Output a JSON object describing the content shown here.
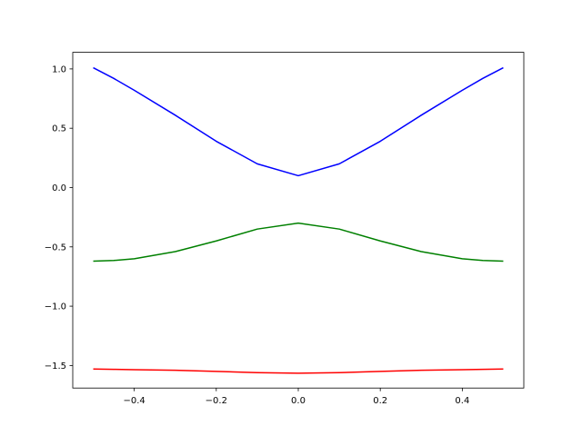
{
  "chart_data": {
    "type": "line",
    "x": [
      -0.5,
      -0.45,
      -0.4,
      -0.3,
      -0.2,
      -0.1,
      0,
      0.1,
      0.2,
      0.3,
      0.4,
      0.45,
      0.5
    ],
    "series": [
      {
        "color": "#0000ff",
        "values": [
          1.01,
          0.92,
          0.82,
          0.61,
          0.39,
          0.2,
          0.1,
          0.2,
          0.39,
          0.61,
          0.82,
          0.92,
          1.01
        ]
      },
      {
        "color": "#008000",
        "values": [
          -0.62,
          -0.615,
          -0.6,
          -0.54,
          -0.45,
          -0.35,
          -0.3,
          -0.35,
          -0.45,
          -0.54,
          -0.6,
          -0.615,
          -0.62
        ]
      },
      {
        "color": "#ff0000",
        "values": [
          -1.53,
          -1.532,
          -1.535,
          -1.54,
          -1.55,
          -1.56,
          -1.565,
          -1.56,
          -1.55,
          -1.54,
          -1.535,
          -1.532,
          -1.53
        ]
      }
    ],
    "xlim": [
      -0.55,
      0.55
    ],
    "ylim": [
      -1.69,
      1.14
    ],
    "xticks": [
      {
        "value": -0.4,
        "label": "−0.4"
      },
      {
        "value": -0.2,
        "label": "−0.2"
      },
      {
        "value": 0,
        "label": "0.0"
      },
      0.2,
      0.4
    ],
    "yticks": [
      {
        "value": -1.5,
        "label": "−1.5"
      },
      {
        "value": -1.0,
        "label": "−1.0"
      },
      {
        "value": -0.5,
        "label": "−0.5"
      },
      {
        "value": 0,
        "label": "0.0"
      },
      0.5,
      {
        "value": 1.0,
        "label": "1.0"
      }
    ],
    "grid": false
  }
}
